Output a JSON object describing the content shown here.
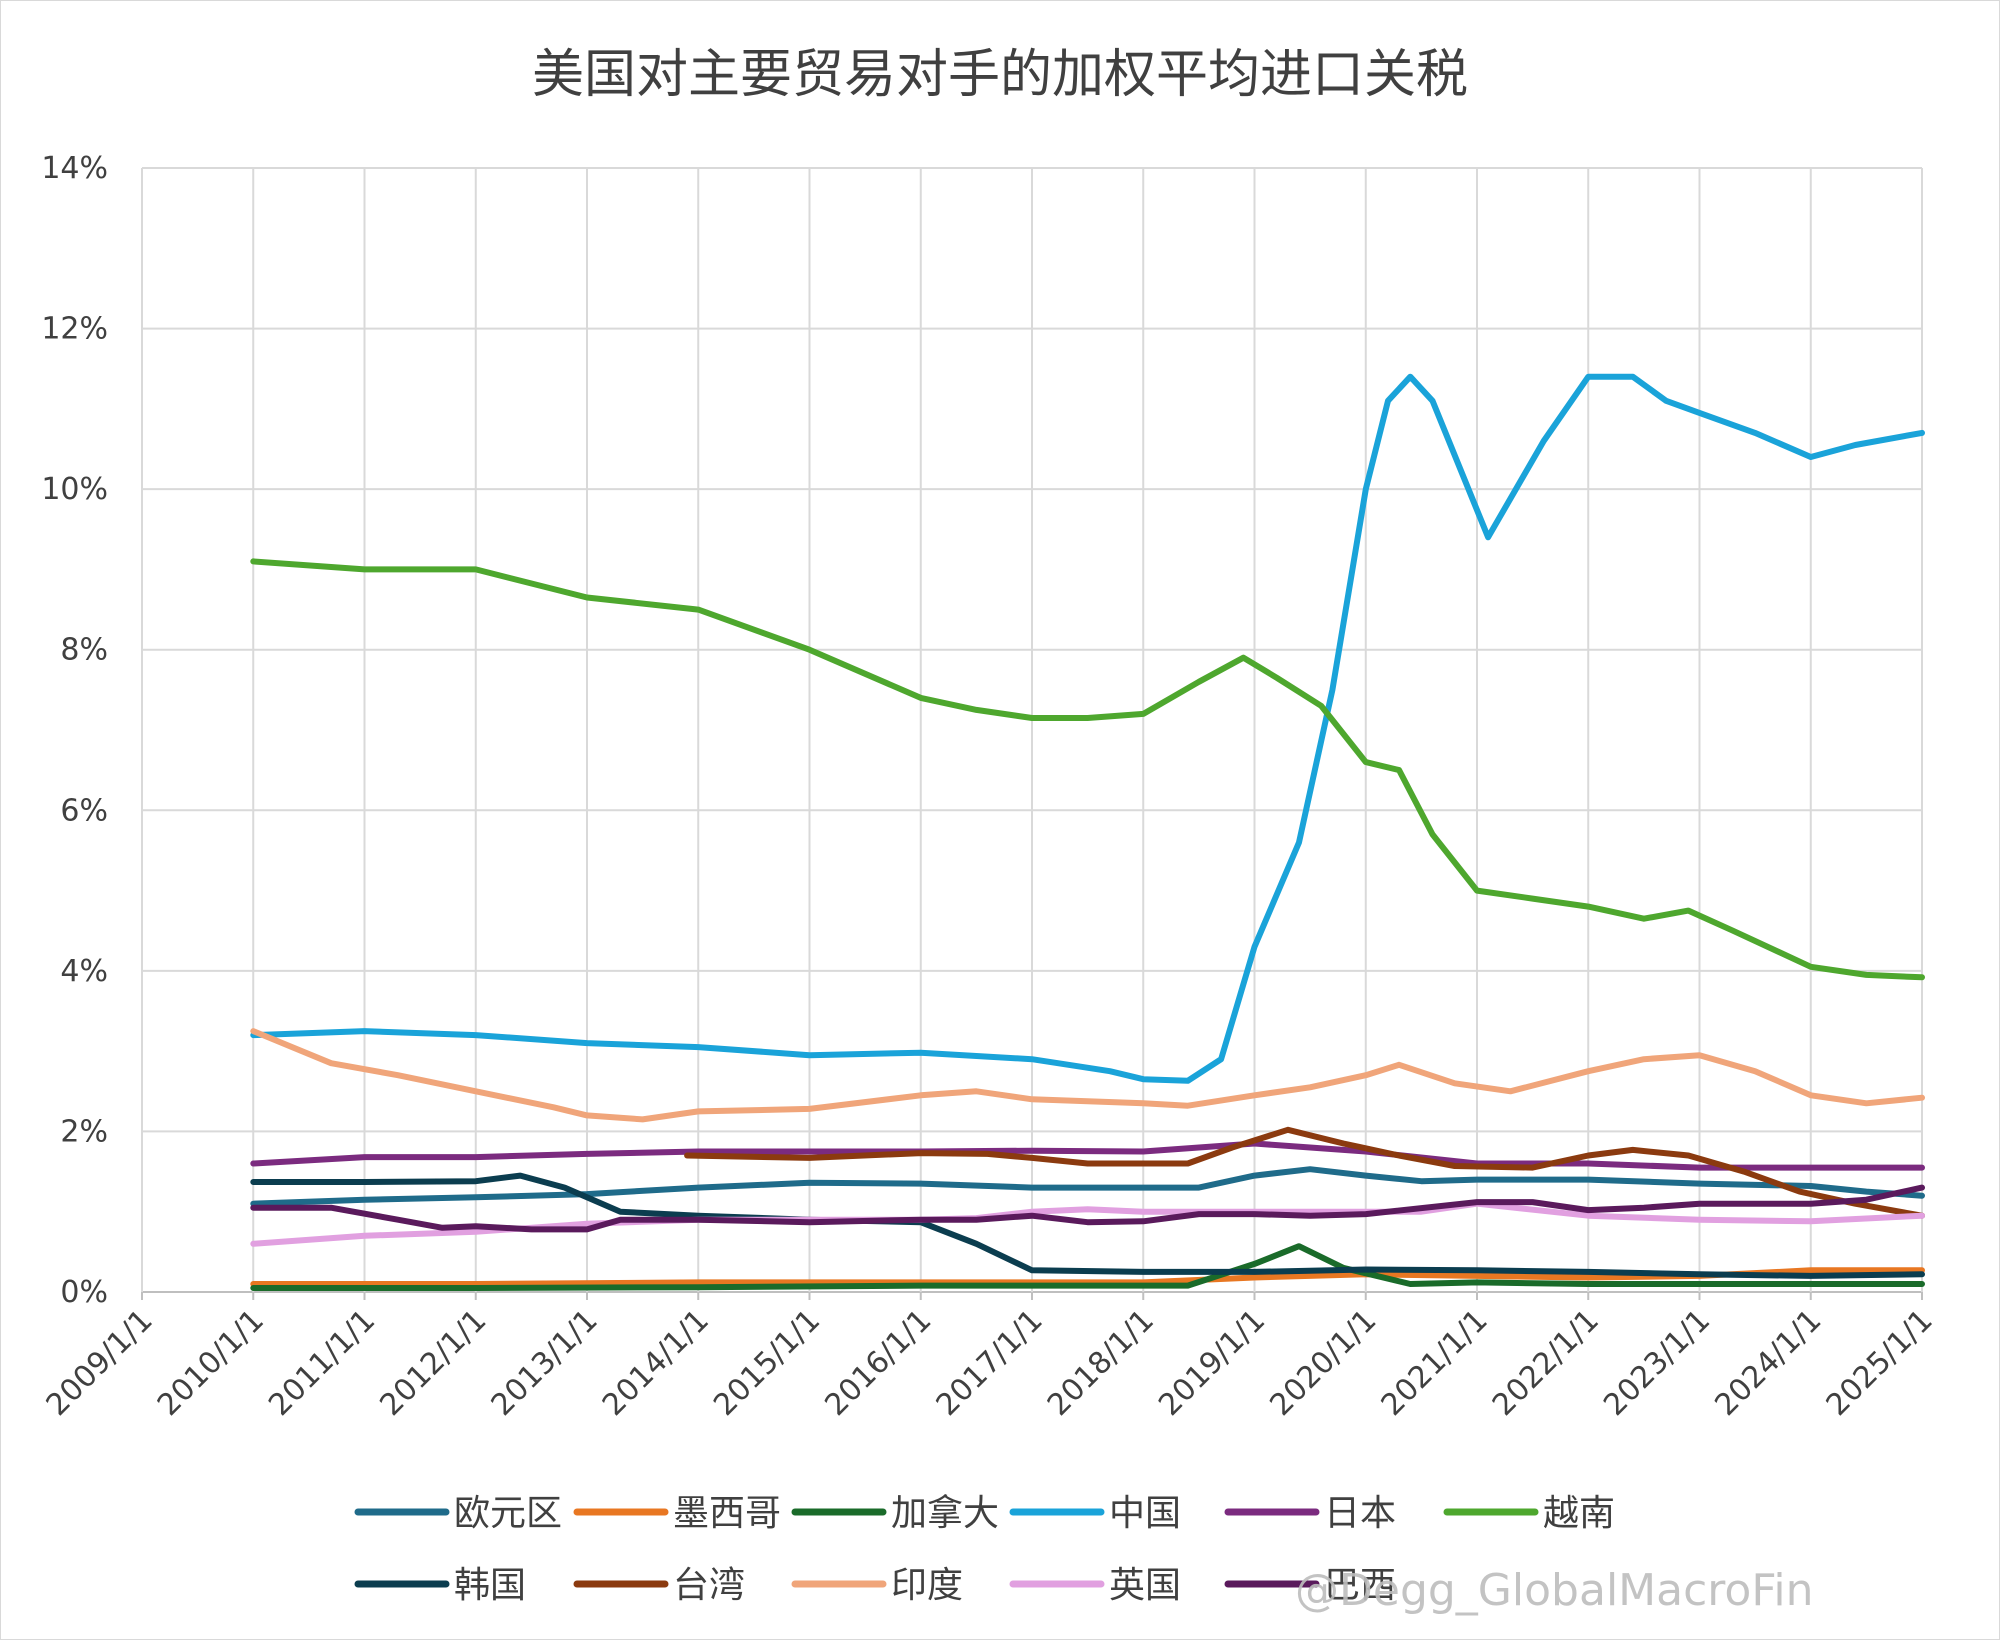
{
  "chart_data": {
    "type": "line",
    "title": "美国对主要贸易对手的加权平均进口关税",
    "xlabel": "",
    "ylabel": "",
    "x_tick_labels": [
      "2009/1/1",
      "2010/1/1",
      "2011/1/1",
      "2012/1/1",
      "2013/1/1",
      "2014/1/1",
      "2015/1/1",
      "2016/1/1",
      "2017/1/1",
      "2018/1/1",
      "2019/1/1",
      "2020/1/1",
      "2021/1/1",
      "2022/1/1",
      "2023/1/1",
      "2024/1/1",
      "2025/1/1"
    ],
    "y_tick_labels": [
      "0%",
      "2%",
      "4%",
      "6%",
      "8%",
      "10%",
      "12%",
      "14%"
    ],
    "ylim": [
      0,
      14
    ],
    "xlim": [
      2009,
      2025
    ],
    "grid": true,
    "legend_position": "bottom",
    "series": [
      {
        "name": "欧元区",
        "color": "#1f6b8a",
        "points": [
          [
            2010,
            1.1
          ],
          [
            2011,
            1.15
          ],
          [
            2012,
            1.18
          ],
          [
            2013,
            1.22
          ],
          [
            2014,
            1.3
          ],
          [
            2015,
            1.36
          ],
          [
            2016,
            1.35
          ],
          [
            2017,
            1.3
          ],
          [
            2018,
            1.3
          ],
          [
            2018.5,
            1.3
          ],
          [
            2019,
            1.45
          ],
          [
            2019.5,
            1.53
          ],
          [
            2020,
            1.45
          ],
          [
            2020.5,
            1.38
          ],
          [
            2021,
            1.4
          ],
          [
            2022,
            1.4
          ],
          [
            2023,
            1.35
          ],
          [
            2024,
            1.32
          ],
          [
            2024.5,
            1.25
          ],
          [
            2025,
            1.2
          ]
        ]
      },
      {
        "name": "墨西哥",
        "color": "#e87722",
        "points": [
          [
            2010,
            0.1
          ],
          [
            2012,
            0.1
          ],
          [
            2014,
            0.12
          ],
          [
            2016,
            0.12
          ],
          [
            2018,
            0.12
          ],
          [
            2019,
            0.18
          ],
          [
            2020,
            0.22
          ],
          [
            2021,
            0.2
          ],
          [
            2022,
            0.18
          ],
          [
            2023,
            0.2
          ],
          [
            2024,
            0.27
          ],
          [
            2025,
            0.27
          ]
        ]
      },
      {
        "name": "加拿大",
        "color": "#1a6b2a",
        "points": [
          [
            2010,
            0.05
          ],
          [
            2012,
            0.05
          ],
          [
            2014,
            0.06
          ],
          [
            2016,
            0.08
          ],
          [
            2018,
            0.08
          ],
          [
            2018.4,
            0.08
          ],
          [
            2019,
            0.35
          ],
          [
            2019.4,
            0.57
          ],
          [
            2019.8,
            0.3
          ],
          [
            2020.4,
            0.1
          ],
          [
            2021,
            0.12
          ],
          [
            2022,
            0.1
          ],
          [
            2023,
            0.1
          ],
          [
            2024,
            0.1
          ],
          [
            2025,
            0.1
          ]
        ]
      },
      {
        "name": "中国",
        "color": "#1aa3d9",
        "points": [
          [
            2010,
            3.2
          ],
          [
            2011,
            3.25
          ],
          [
            2012,
            3.2
          ],
          [
            2013,
            3.1
          ],
          [
            2014,
            3.05
          ],
          [
            2015,
            2.95
          ],
          [
            2016,
            2.98
          ],
          [
            2017,
            2.9
          ],
          [
            2017.7,
            2.75
          ],
          [
            2018,
            2.65
          ],
          [
            2018.4,
            2.63
          ],
          [
            2018.7,
            2.9
          ],
          [
            2019,
            4.3
          ],
          [
            2019.4,
            5.6
          ],
          [
            2019.7,
            7.5
          ],
          [
            2020,
            10.0
          ],
          [
            2020.2,
            11.1
          ],
          [
            2020.4,
            11.4
          ],
          [
            2020.6,
            11.1
          ],
          [
            2021.1,
            9.4
          ],
          [
            2021.6,
            10.6
          ],
          [
            2022,
            11.4
          ],
          [
            2022.4,
            11.4
          ],
          [
            2022.7,
            11.1
          ],
          [
            2023,
            10.95
          ],
          [
            2023.5,
            10.7
          ],
          [
            2024,
            10.4
          ],
          [
            2024.4,
            10.55
          ],
          [
            2025,
            10.7
          ]
        ]
      },
      {
        "name": "日本",
        "color": "#7b2b7f",
        "points": [
          [
            2010,
            1.6
          ],
          [
            2011,
            1.68
          ],
          [
            2012,
            1.68
          ],
          [
            2013,
            1.72
          ],
          [
            2014,
            1.75
          ],
          [
            2015,
            1.75
          ],
          [
            2016,
            1.75
          ],
          [
            2017,
            1.76
          ],
          [
            2018,
            1.75
          ],
          [
            2019,
            1.85
          ],
          [
            2020,
            1.75
          ],
          [
            2021,
            1.6
          ],
          [
            2022,
            1.6
          ],
          [
            2023,
            1.55
          ],
          [
            2024,
            1.55
          ],
          [
            2025,
            1.55
          ]
        ]
      },
      {
        "name": "越南",
        "color": "#4ea72e",
        "points": [
          [
            2010,
            9.1
          ],
          [
            2011,
            9.0
          ],
          [
            2012,
            9.0
          ],
          [
            2013,
            8.65
          ],
          [
            2014,
            8.5
          ],
          [
            2015,
            8.0
          ],
          [
            2016,
            7.4
          ],
          [
            2016.5,
            7.25
          ],
          [
            2017,
            7.15
          ],
          [
            2017.5,
            7.15
          ],
          [
            2018,
            7.2
          ],
          [
            2018.5,
            7.6
          ],
          [
            2018.9,
            7.9
          ],
          [
            2019.2,
            7.65
          ],
          [
            2019.6,
            7.3
          ],
          [
            2020,
            6.6
          ],
          [
            2020.3,
            6.5
          ],
          [
            2020.6,
            5.7
          ],
          [
            2021,
            5.0
          ],
          [
            2021.5,
            4.9
          ],
          [
            2022,
            4.8
          ],
          [
            2022.5,
            4.65
          ],
          [
            2022.9,
            4.75
          ],
          [
            2023.3,
            4.5
          ],
          [
            2024,
            4.05
          ],
          [
            2024.5,
            3.95
          ],
          [
            2025,
            3.92
          ]
        ]
      },
      {
        "name": "韩国",
        "color": "#0b3d4f",
        "points": [
          [
            2010,
            1.37
          ],
          [
            2011,
            1.37
          ],
          [
            2012,
            1.38
          ],
          [
            2012.4,
            1.45
          ],
          [
            2012.8,
            1.3
          ],
          [
            2013.3,
            1.0
          ],
          [
            2014,
            0.95
          ],
          [
            2015,
            0.9
          ],
          [
            2016,
            0.87
          ],
          [
            2016.5,
            0.6
          ],
          [
            2017,
            0.27
          ],
          [
            2018,
            0.25
          ],
          [
            2019,
            0.25
          ],
          [
            2020,
            0.28
          ],
          [
            2021,
            0.27
          ],
          [
            2022,
            0.25
          ],
          [
            2023,
            0.22
          ],
          [
            2024,
            0.2
          ],
          [
            2025,
            0.22
          ]
        ]
      },
      {
        "name": "台湾",
        "color": "#8b3a0f",
        "points": [
          [
            2013.9,
            1.7
          ],
          [
            2015,
            1.67
          ],
          [
            2016,
            1.73
          ],
          [
            2016.6,
            1.72
          ],
          [
            2017,
            1.67
          ],
          [
            2017.5,
            1.6
          ],
          [
            2018.4,
            1.6
          ],
          [
            2018.8,
            1.8
          ],
          [
            2019.3,
            2.02
          ],
          [
            2019.8,
            1.85
          ],
          [
            2020.3,
            1.7
          ],
          [
            2020.8,
            1.57
          ],
          [
            2021.5,
            1.55
          ],
          [
            2022,
            1.7
          ],
          [
            2022.4,
            1.77
          ],
          [
            2022.9,
            1.7
          ],
          [
            2023.4,
            1.5
          ],
          [
            2023.9,
            1.25
          ],
          [
            2024.4,
            1.1
          ],
          [
            2025,
            0.95
          ]
        ]
      },
      {
        "name": "印度",
        "color": "#f0a57a",
        "points": [
          [
            2010,
            3.25
          ],
          [
            2010.7,
            2.85
          ],
          [
            2011.3,
            2.7
          ],
          [
            2012,
            2.5
          ],
          [
            2012.7,
            2.3
          ],
          [
            2013,
            2.2
          ],
          [
            2013.5,
            2.15
          ],
          [
            2014,
            2.25
          ],
          [
            2015,
            2.28
          ],
          [
            2016,
            2.45
          ],
          [
            2016.5,
            2.5
          ],
          [
            2017,
            2.4
          ],
          [
            2018,
            2.35
          ],
          [
            2018.4,
            2.32
          ],
          [
            2019,
            2.45
          ],
          [
            2019.5,
            2.55
          ],
          [
            2020,
            2.7
          ],
          [
            2020.3,
            2.83
          ],
          [
            2020.8,
            2.6
          ],
          [
            2021.3,
            2.5
          ],
          [
            2022,
            2.75
          ],
          [
            2022.5,
            2.9
          ],
          [
            2023,
            2.95
          ],
          [
            2023.5,
            2.75
          ],
          [
            2024,
            2.45
          ],
          [
            2024.5,
            2.35
          ],
          [
            2025,
            2.42
          ]
        ]
      },
      {
        "name": "英国",
        "color": "#e1a0e0",
        "points": [
          [
            2010,
            0.6
          ],
          [
            2011,
            0.7
          ],
          [
            2012,
            0.75
          ],
          [
            2013,
            0.85
          ],
          [
            2014,
            0.9
          ],
          [
            2015,
            0.9
          ],
          [
            2016,
            0.9
          ],
          [
            2016.5,
            0.92
          ],
          [
            2017,
            1.0
          ],
          [
            2017.5,
            1.03
          ],
          [
            2018,
            1.0
          ],
          [
            2019,
            1.0
          ],
          [
            2019.6,
            1.0
          ],
          [
            2020.5,
            1.0
          ],
          [
            2021,
            1.1
          ],
          [
            2022,
            0.95
          ],
          [
            2023,
            0.9
          ],
          [
            2024,
            0.88
          ],
          [
            2025,
            0.95
          ]
        ]
      },
      {
        "name": "巴西",
        "color": "#5a1a5c",
        "points": [
          [
            2010,
            1.05
          ],
          [
            2010.7,
            1.05
          ],
          [
            2011.3,
            0.9
          ],
          [
            2011.7,
            0.8
          ],
          [
            2012,
            0.82
          ],
          [
            2012.5,
            0.78
          ],
          [
            2013,
            0.78
          ],
          [
            2013.3,
            0.9
          ],
          [
            2014,
            0.9
          ],
          [
            2015,
            0.87
          ],
          [
            2016,
            0.9
          ],
          [
            2016.5,
            0.9
          ],
          [
            2017,
            0.95
          ],
          [
            2017.5,
            0.87
          ],
          [
            2018,
            0.88
          ],
          [
            2018.5,
            0.97
          ],
          [
            2019,
            0.97
          ],
          [
            2019.5,
            0.95
          ],
          [
            2020,
            0.97
          ],
          [
            2021,
            1.12
          ],
          [
            2021.5,
            1.12
          ],
          [
            2022,
            1.02
          ],
          [
            2022.5,
            1.05
          ],
          [
            2023,
            1.1
          ],
          [
            2023.5,
            1.1
          ],
          [
            2024,
            1.1
          ],
          [
            2024.5,
            1.15
          ],
          [
            2025,
            1.3
          ]
        ]
      }
    ]
  },
  "watermark": "@Degg_GlobalMacroFin"
}
